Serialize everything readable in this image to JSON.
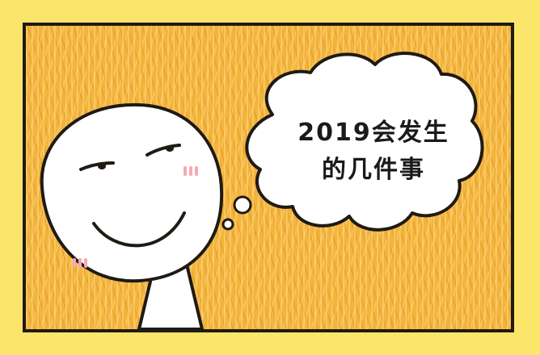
{
  "speech_bubble": {
    "line1": "2019会发生",
    "line2": "的几件事"
  },
  "colors": {
    "outer_background": "#fce56b",
    "panel_background": "#f3b43c",
    "outline": "#1f1a14",
    "face": "#ffffff",
    "blush": "#f6a8b4"
  }
}
